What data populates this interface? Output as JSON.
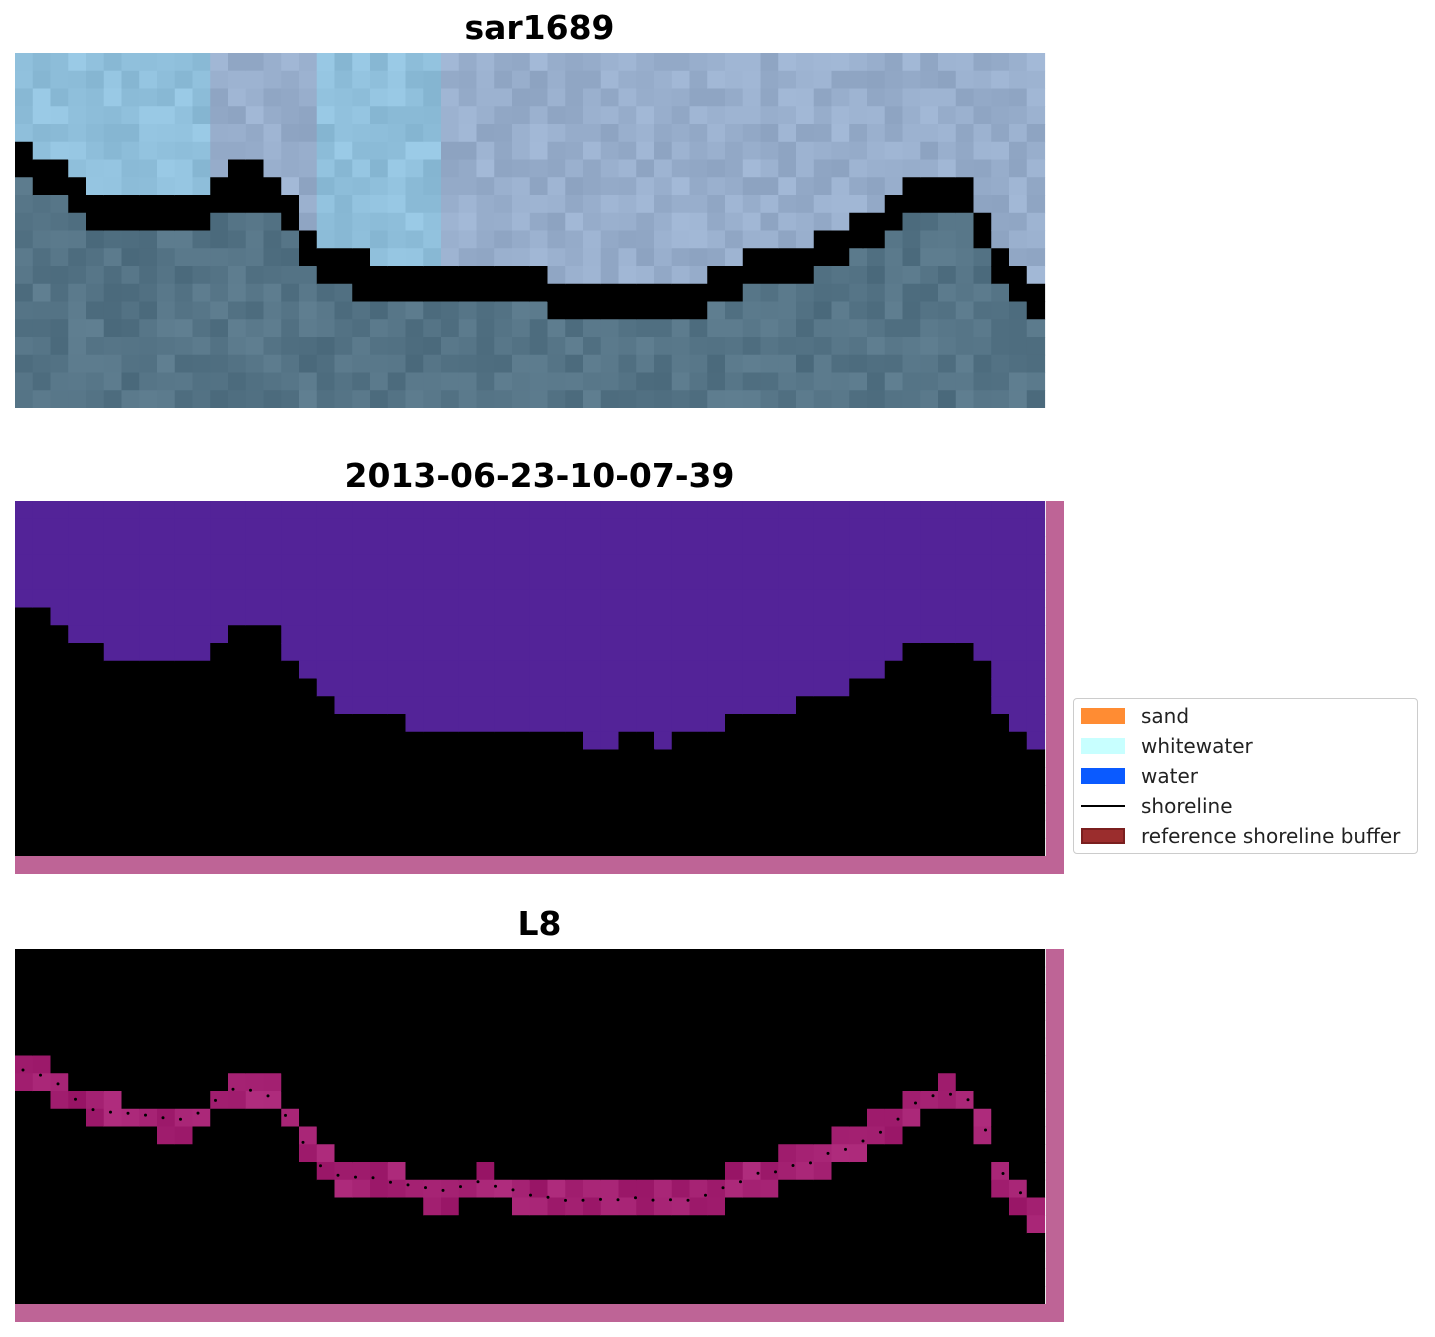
{
  "panels": [
    {
      "title": "sar1689"
    },
    {
      "title": "2013-06-23-10-07-39"
    },
    {
      "title": "L8"
    }
  ],
  "legend": {
    "items": [
      {
        "label": "sand",
        "color": "#ff8c33",
        "kind": "patch"
      },
      {
        "label": "whitewater",
        "color": "#c8ffff",
        "kind": "patch"
      },
      {
        "label": "water",
        "color": "#0a5aff",
        "kind": "patch"
      },
      {
        "label": "shoreline",
        "color": "#000000",
        "kind": "line"
      },
      {
        "label": "reference shoreline buffer",
        "color": "#9b2d2d",
        "kind": "patch"
      }
    ]
  },
  "colors": {
    "rgb_sky": "#9aaac8",
    "rgb_white": "#d8eeee",
    "rgb_water": "#4e6e80",
    "class_water": "#532398",
    "class_land": "#6e2860",
    "class_edge": "#b8607c",
    "frame": "#be6496",
    "mndwi_water": "#7a209f",
    "mndwi_land": "#c4204c"
  }
}
